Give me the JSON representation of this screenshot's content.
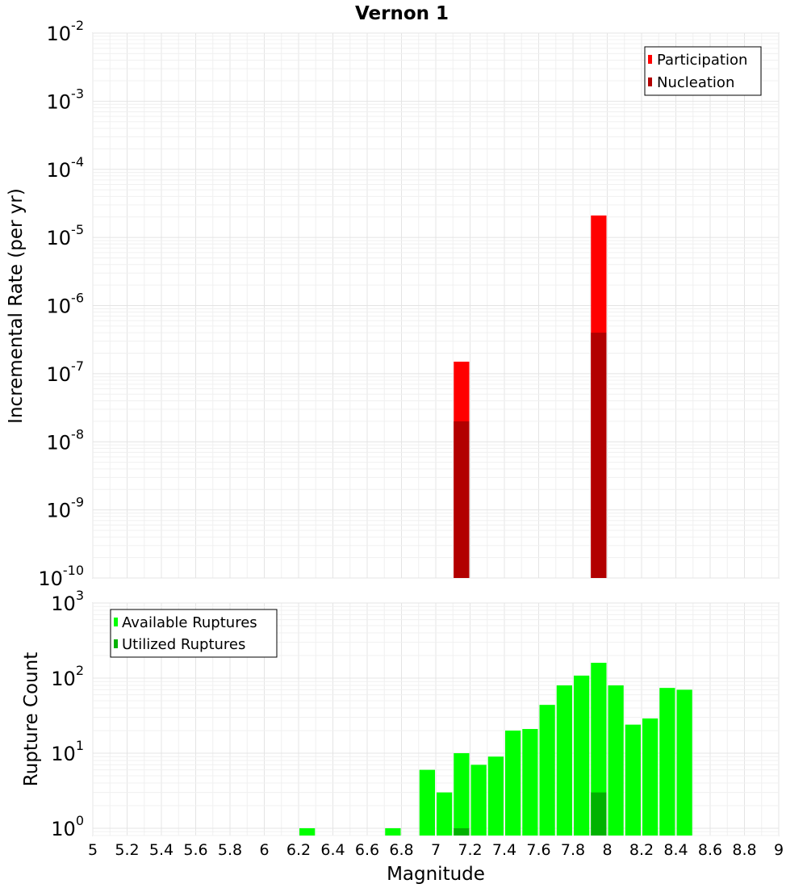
{
  "chart_data": [
    {
      "type": "bar",
      "title": "Vernon 1",
      "xlabel": "",
      "ylabel": "Incremental Rate (per yr)",
      "yscale": "log",
      "xlim": [
        5,
        9
      ],
      "ylim": [
        1e-10,
        0.01
      ],
      "ytick_exponents": [
        "-10",
        "-9",
        "-8",
        "-7",
        "-6",
        "-5",
        "-4",
        "-3",
        "-2"
      ],
      "legend_placement": "top-right",
      "bin_width": 0.1,
      "series": [
        {
          "name": "Participation",
          "color": "#ff0000",
          "points": [
            {
              "x": 7.15,
              "y": 1.5e-07
            },
            {
              "x": 7.95,
              "y": 2.1e-05
            }
          ]
        },
        {
          "name": "Nucleation",
          "color": "#b20000",
          "points": [
            {
              "x": 7.15,
              "y": 2e-08
            },
            {
              "x": 7.95,
              "y": 4e-07
            }
          ]
        }
      ]
    },
    {
      "type": "bar",
      "xlabel": "Magnitude",
      "ylabel": "Rupture Count",
      "yscale": "log",
      "xlim": [
        5,
        9
      ],
      "ylim": [
        0.8,
        1000
      ],
      "ytick_exponents": [
        "0",
        "1",
        "2",
        "3"
      ],
      "xticks": [
        "5",
        "5.2",
        "5.4",
        "5.6",
        "5.8",
        "6",
        "6.2",
        "6.4",
        "6.6",
        "6.8",
        "7",
        "7.2",
        "7.4",
        "7.6",
        "7.8",
        "8",
        "8.2",
        "8.4",
        "8.6",
        "8.8",
        "9"
      ],
      "legend_placement": "top-left",
      "bin_width": 0.1,
      "series": [
        {
          "name": "Available Ruptures",
          "color": "#00ff00",
          "points": [
            {
              "x": 6.25,
              "y": 1
            },
            {
              "x": 6.75,
              "y": 1
            },
            {
              "x": 6.95,
              "y": 6
            },
            {
              "x": 7.05,
              "y": 3
            },
            {
              "x": 7.15,
              "y": 10
            },
            {
              "x": 7.25,
              "y": 7
            },
            {
              "x": 7.35,
              "y": 9
            },
            {
              "x": 7.45,
              "y": 20
            },
            {
              "x": 7.55,
              "y": 21
            },
            {
              "x": 7.65,
              "y": 44
            },
            {
              "x": 7.75,
              "y": 80
            },
            {
              "x": 7.85,
              "y": 108
            },
            {
              "x": 7.95,
              "y": 160
            },
            {
              "x": 8.05,
              "y": 80
            },
            {
              "x": 8.15,
              "y": 24
            },
            {
              "x": 8.25,
              "y": 29
            },
            {
              "x": 8.35,
              "y": 74
            },
            {
              "x": 8.45,
              "y": 70
            }
          ]
        },
        {
          "name": "Utilized Ruptures",
          "color": "#00b200",
          "points": [
            {
              "x": 7.15,
              "y": 1
            },
            {
              "x": 7.95,
              "y": 3
            }
          ]
        }
      ]
    }
  ]
}
